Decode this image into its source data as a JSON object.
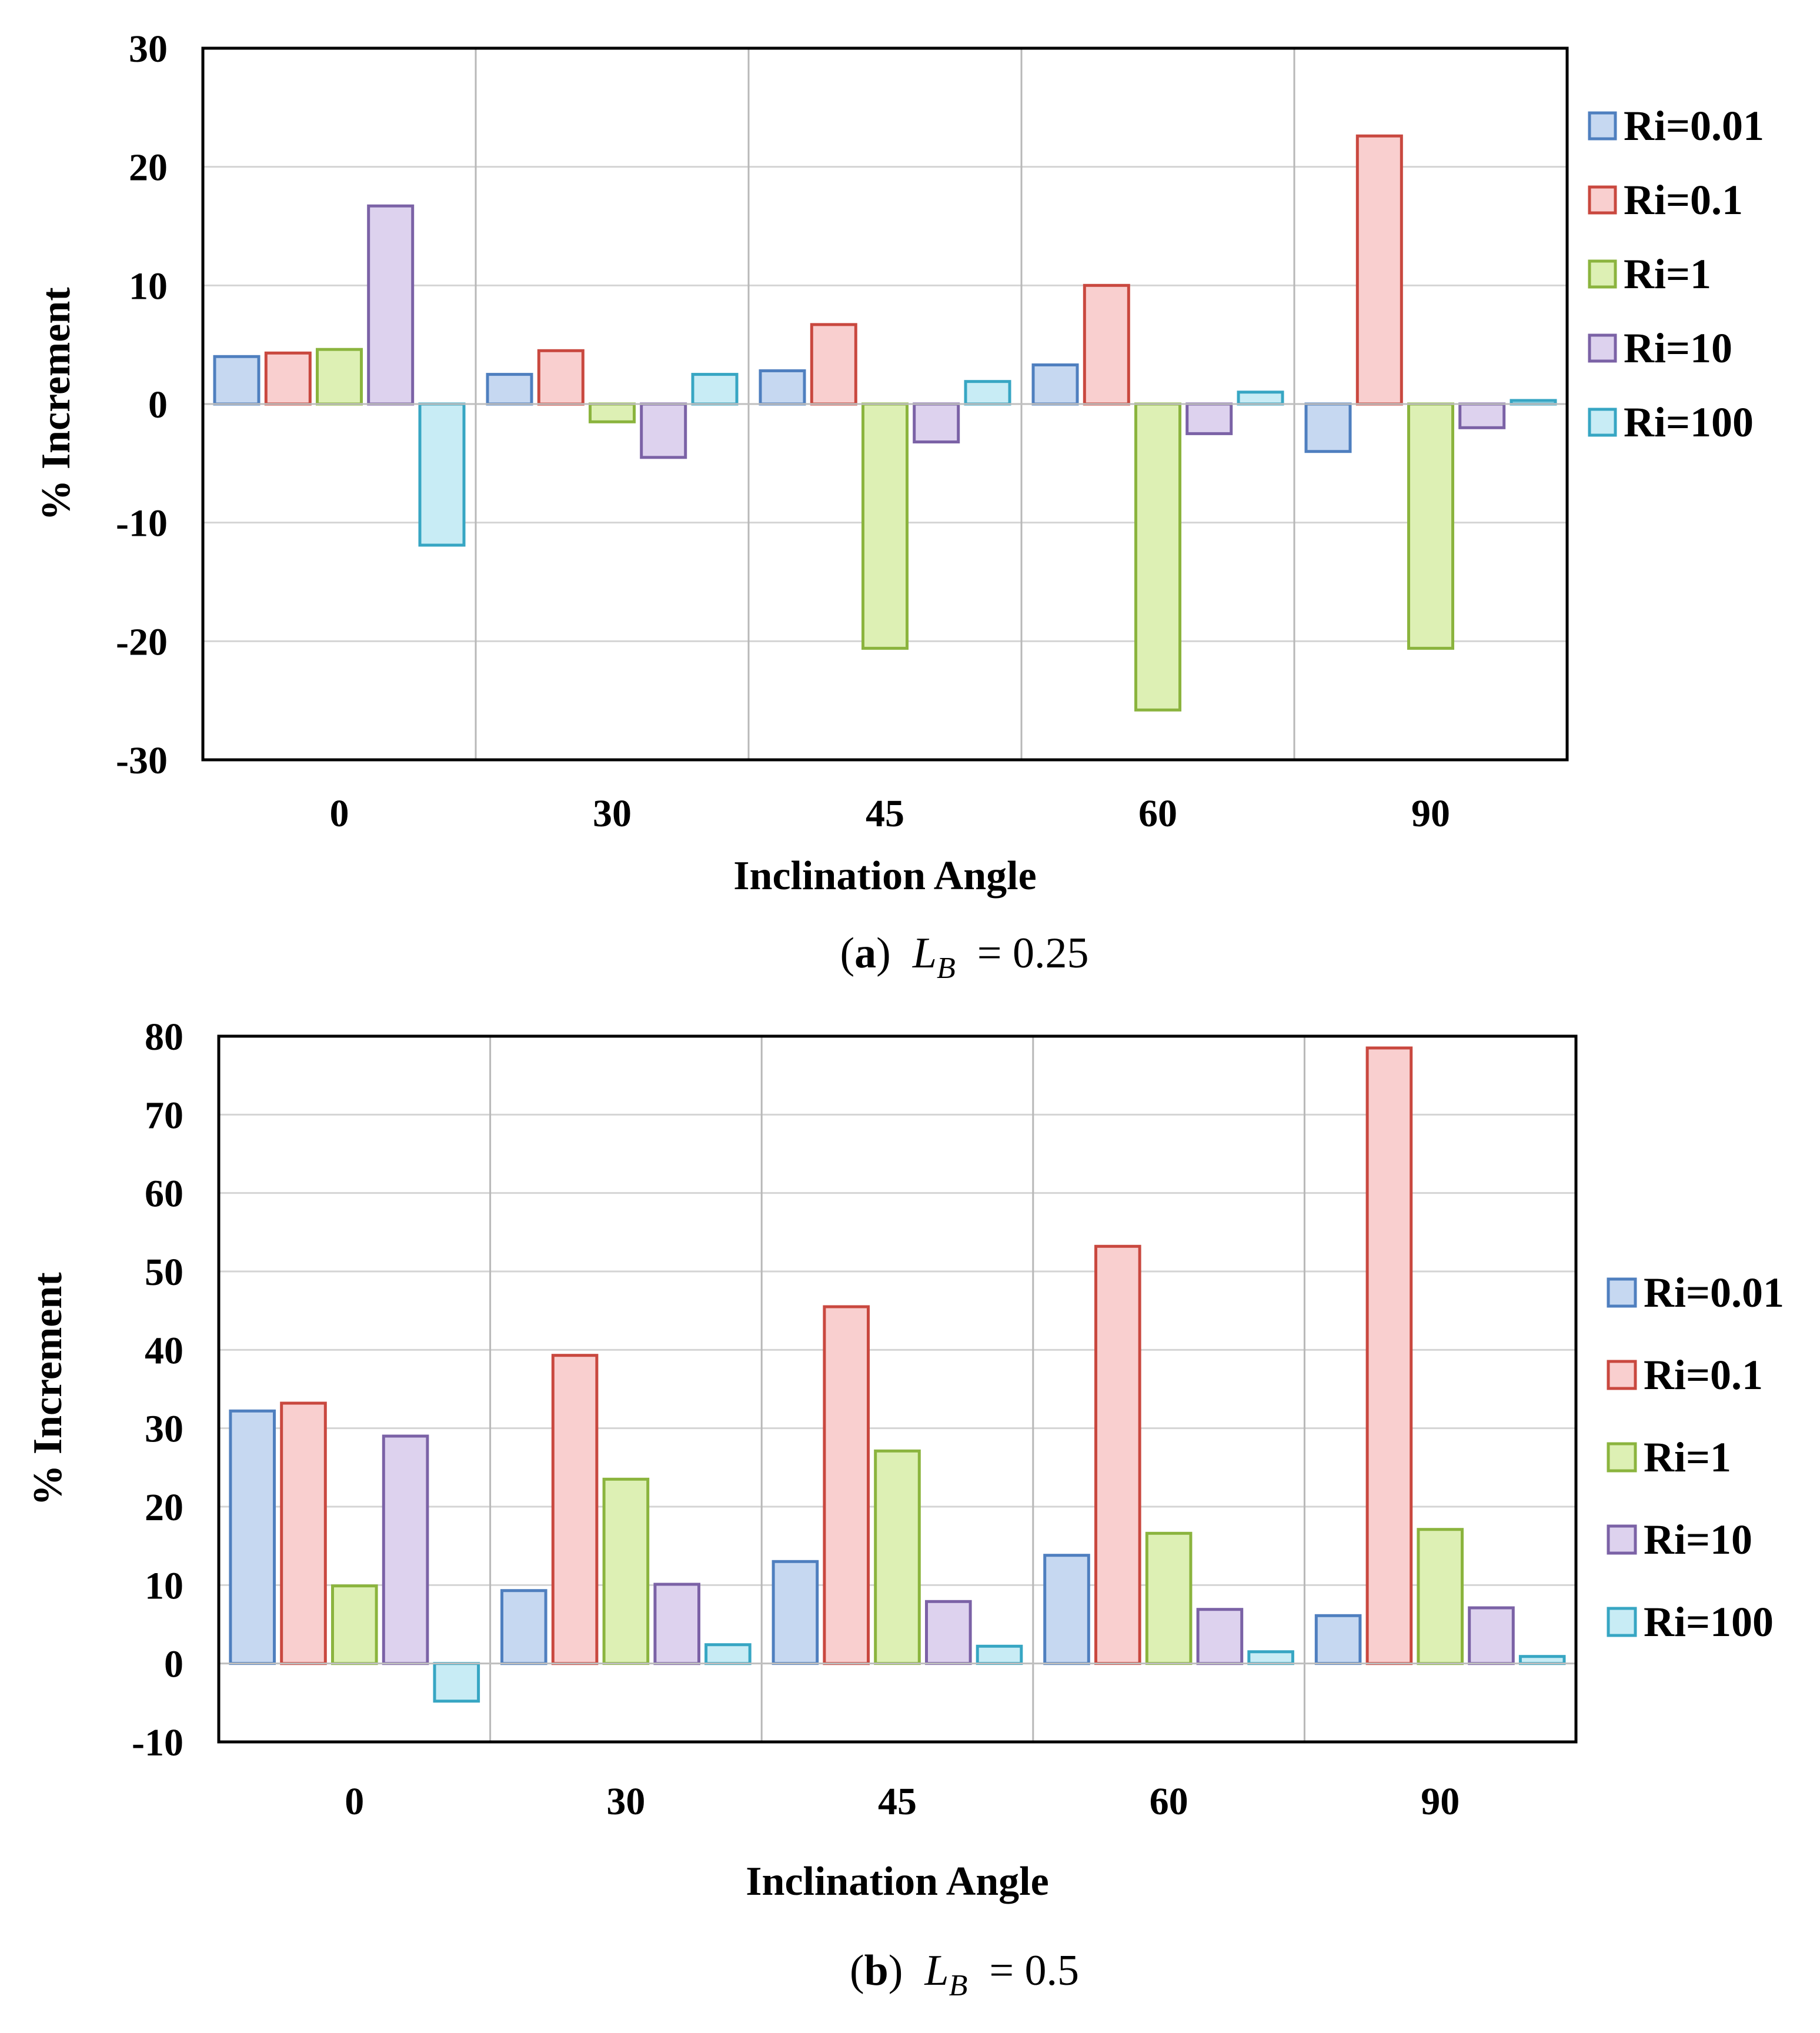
{
  "colors": {
    "Ri=0.01": {
      "fill": "#c6d8f1",
      "stroke": "#4f7fbf"
    },
    "Ri=0.1": {
      "fill": "#f9cfcf",
      "stroke": "#c9483f"
    },
    "Ri=1": {
      "fill": "#ddf0b4",
      "stroke": "#8bb43e"
    },
    "Ri=10": {
      "fill": "#ddd2ee",
      "stroke": "#7b62a6"
    },
    "Ri=100": {
      "fill": "#c8ecf5",
      "stroke": "#37a6c3"
    }
  },
  "chart_data": [
    {
      "type": "bar",
      "xlabel": "Inclination Angle",
      "ylabel": "% Increment",
      "categories": [
        "0",
        "30",
        "45",
        "60",
        "90"
      ],
      "ylim": [
        -30,
        30
      ],
      "yticks": [
        30,
        20,
        10,
        0,
        -10,
        -20,
        -30
      ],
      "grid": true,
      "legend_position": "right",
      "caption": {
        "letter": "a",
        "var": "L",
        "sub": "B",
        "value": "= 0.25"
      },
      "series": [
        {
          "name": "Ri=0.01",
          "values": [
            4.0,
            2.5,
            2.8,
            3.3,
            -4.0
          ]
        },
        {
          "name": "Ri=0.1",
          "values": [
            4.3,
            4.5,
            6.7,
            10.0,
            22.6
          ]
        },
        {
          "name": "Ri=1",
          "values": [
            4.6,
            -1.5,
            -20.6,
            -25.8,
            -20.6
          ]
        },
        {
          "name": "Ri=10",
          "values": [
            16.7,
            -4.5,
            -3.2,
            -2.5,
            -2.0
          ]
        },
        {
          "name": "Ri=100",
          "values": [
            -11.9,
            2.5,
            1.9,
            1.0,
            0.3
          ]
        }
      ]
    },
    {
      "type": "bar",
      "xlabel": "Inclination Angle",
      "ylabel": "% Increment",
      "categories": [
        "0",
        "30",
        "45",
        "60",
        "90"
      ],
      "ylim": [
        -10,
        80
      ],
      "yticks": [
        80,
        70,
        60,
        50,
        40,
        30,
        20,
        10,
        0,
        -10
      ],
      "grid": true,
      "legend_position": "right",
      "caption": {
        "letter": "b",
        "var": "L",
        "sub": "B",
        "value": "= 0.5"
      },
      "series": [
        {
          "name": "Ri=0.01",
          "values": [
            32.2,
            9.3,
            13.0,
            13.8,
            6.1
          ]
        },
        {
          "name": "Ri=0.1",
          "values": [
            33.2,
            39.3,
            45.5,
            53.2,
            78.5
          ]
        },
        {
          "name": "Ri=1",
          "values": [
            9.9,
            23.5,
            27.1,
            16.6,
            17.1
          ]
        },
        {
          "name": "Ri=10",
          "values": [
            29.0,
            10.1,
            7.9,
            6.9,
            7.1
          ]
        },
        {
          "name": "Ri=100",
          "values": [
            -4.8,
            2.4,
            2.2,
            1.5,
            0.9
          ]
        }
      ]
    }
  ]
}
